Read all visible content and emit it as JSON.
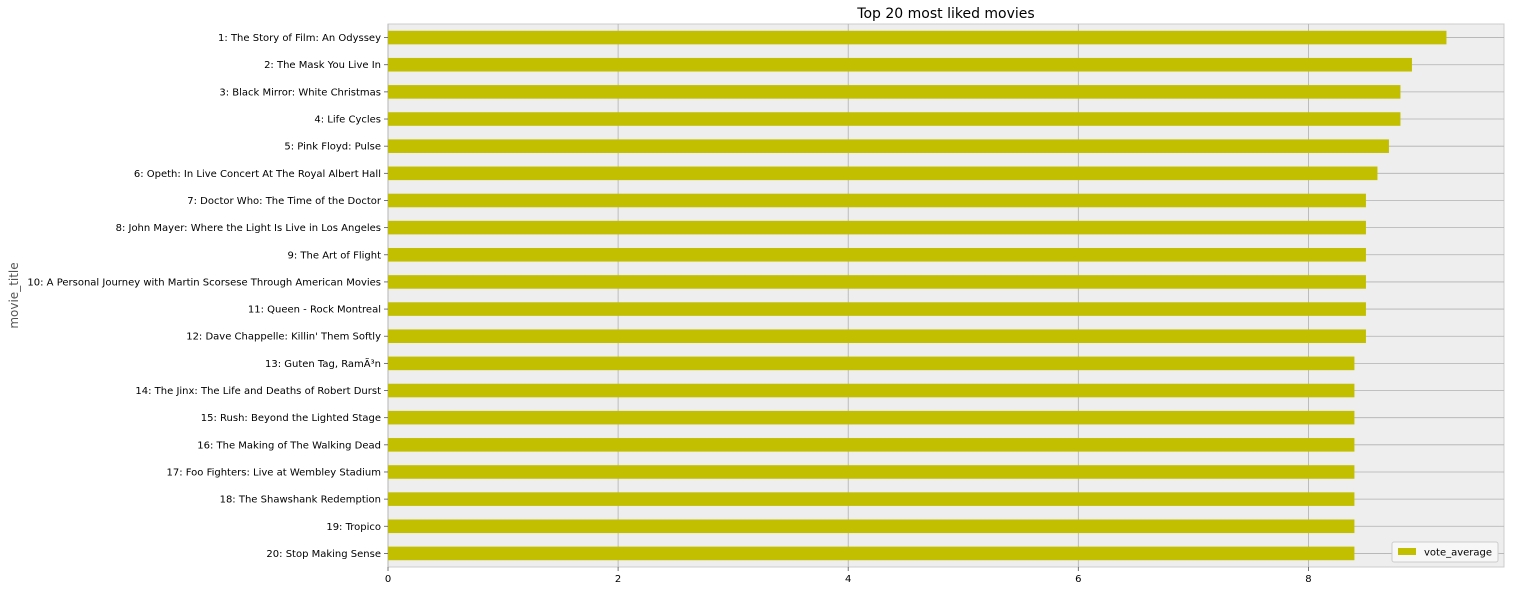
{
  "chart_data": {
    "type": "bar",
    "orientation": "horizontal",
    "title": "Top 20 most liked movies",
    "xlabel": "",
    "ylabel": "movie_title",
    "xlim": [
      0,
      9.7
    ],
    "x_ticks": [
      0,
      2,
      4,
      6,
      8
    ],
    "grid": true,
    "legend_placement": "lower-right",
    "bar_color": "#c2bf00",
    "background_color": "#eeeeee",
    "grid_color": "#b0b0b0",
    "categories": [
      "1:  The Story of Film: An Odyssey",
      "2:  The Mask You Live In",
      "3:  Black Mirror: White Christmas",
      "4:  Life Cycles",
      "5:  Pink Floyd: Pulse",
      "6:  Opeth: In Live Concert At The Royal Albert Hall",
      "7:  Doctor Who: The Time of the Doctor",
      "8:  John Mayer: Where the Light Is Live in Los Angeles",
      "9:  The Art of Flight",
      "10:  A Personal Journey with Martin Scorsese Through American Movies",
      "11:  Queen - Rock Montreal",
      "12:  Dave Chappelle: Killin' Them Softly",
      "13:  Guten Tag, RamÃ³n",
      "14:  The Jinx: The Life and Deaths of Robert Durst",
      "15:  Rush: Beyond the Lighted Stage",
      "16:  The Making of The Walking Dead",
      "17:  Foo Fighters: Live at Wembley Stadium",
      "18:  The Shawshank Redemption",
      "19:  Tropico",
      "20:  Stop Making Sense"
    ],
    "series": [
      {
        "name": "vote_average",
        "values": [
          9.2,
          8.9,
          8.8,
          8.8,
          8.7,
          8.6,
          8.5,
          8.5,
          8.5,
          8.5,
          8.5,
          8.5,
          8.4,
          8.4,
          8.4,
          8.4,
          8.4,
          8.4,
          8.4,
          8.4
        ]
      }
    ]
  }
}
